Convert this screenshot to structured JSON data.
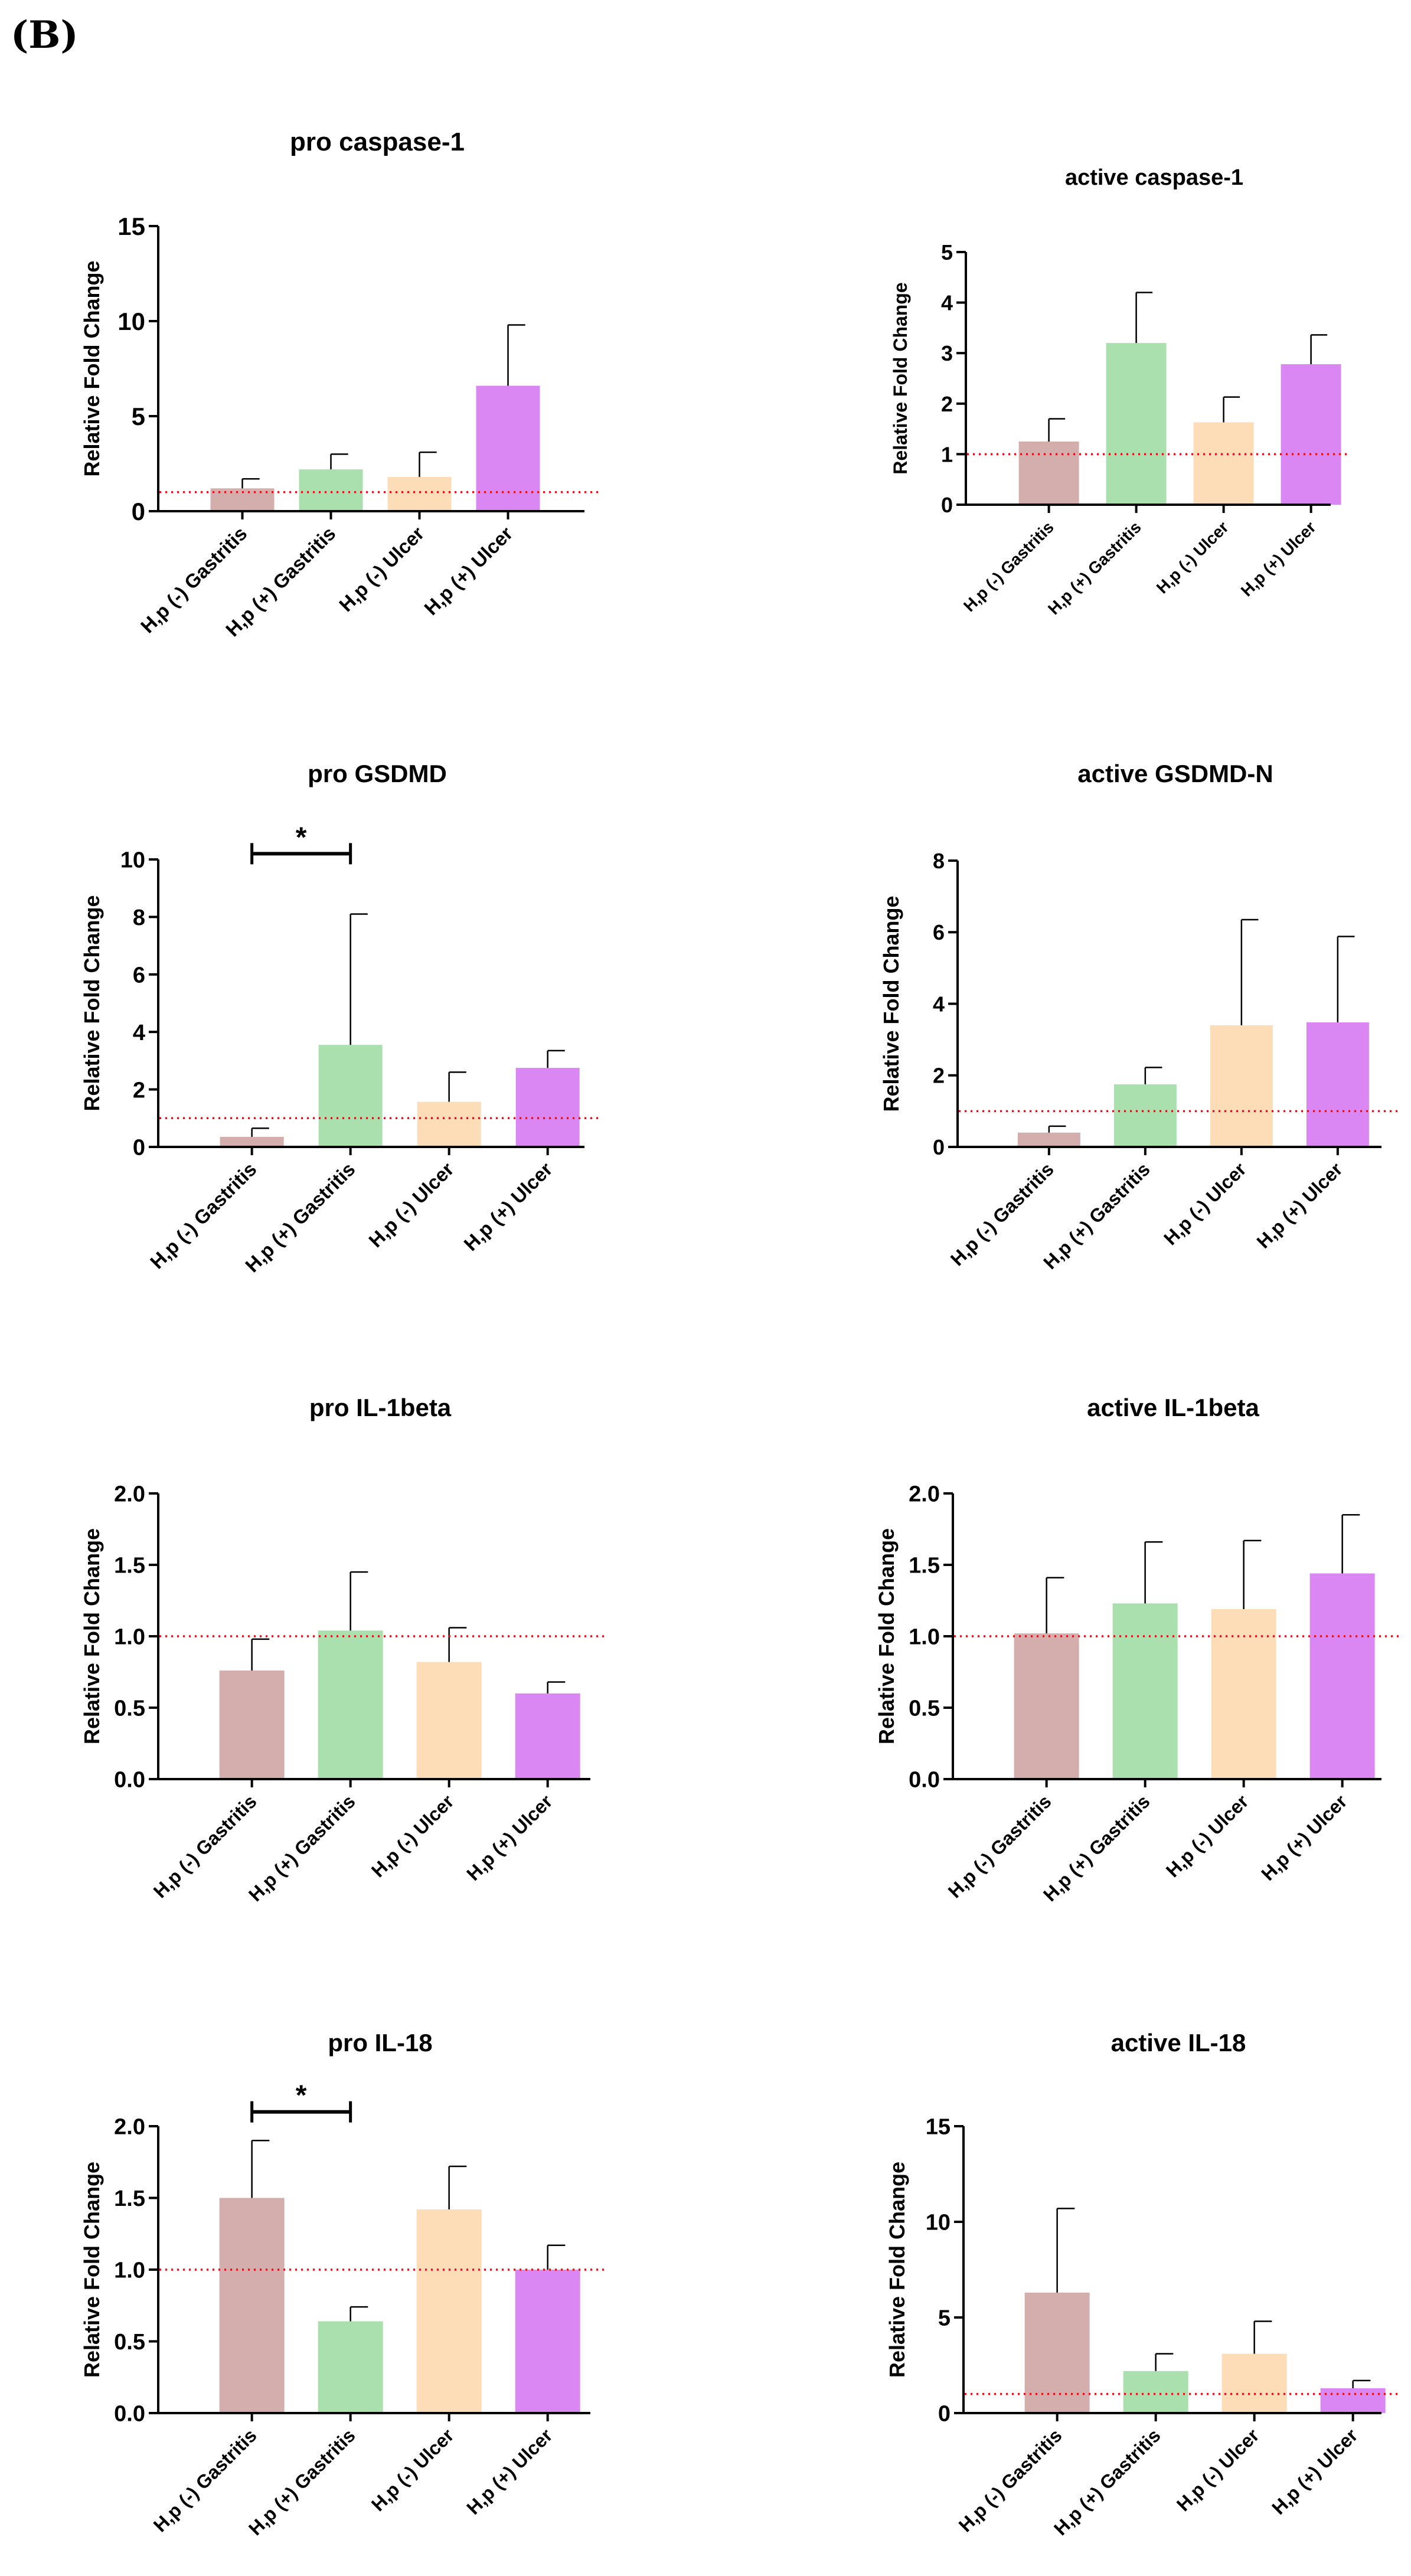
{
  "figure": {
    "panel_label": "(B)",
    "ylabel": "Relative Fold Change",
    "colors": {
      "gastritis_neg": "#d4aeac",
      "gastritis_pos": "#aae0ae",
      "ulcer_neg": "#fddcb8",
      "ulcer_pos": "#db87f3",
      "reference_line": "#e2101a"
    }
  },
  "chart_data": [
    {
      "type": "bar",
      "title": "pro caspase-1",
      "ylabel": "Relative Fold Change",
      "categories": [
        "H,p (-) Gastritis",
        "H,p (+) Gastritis",
        "H,p (-) Ulcer",
        "H,p (+) Ulcer"
      ],
      "values": [
        1.2,
        2.2,
        1.8,
        6.6
      ],
      "errors": [
        0.5,
        0.8,
        1.3,
        3.2
      ],
      "ylim": [
        0,
        15
      ],
      "yticks": [
        "0",
        "5",
        "10",
        "15"
      ],
      "reference_line": 1.0,
      "significance": []
    },
    {
      "type": "bar",
      "title": "active caspase-1",
      "ylabel": "Relative Fold Change",
      "categories": [
        "H,p (-) Gastritis",
        "H,p (+) Gastritis",
        "H,p (-) Ulcer",
        "H,p (+) Ulcer"
      ],
      "values": [
        1.25,
        3.2,
        1.63,
        2.78
      ],
      "errors": [
        0.45,
        1.0,
        0.5,
        0.58
      ],
      "ylim": [
        0,
        5
      ],
      "yticks": [
        "0",
        "1",
        "2",
        "3",
        "4",
        "5"
      ],
      "reference_line": 1.0,
      "significance": []
    },
    {
      "type": "bar",
      "title": "pro GSDMD",
      "ylabel": "Relative Fold Change",
      "categories": [
        "H,p (-) Gastritis",
        "H,p (+) Gastritis",
        "H,p (-) Ulcer",
        "H,p (+) Ulcer"
      ],
      "values": [
        0.35,
        3.55,
        1.57,
        2.75
      ],
      "errors": [
        0.3,
        4.55,
        1.03,
        0.6
      ],
      "ylim": [
        0,
        10
      ],
      "yticks": [
        "0",
        "2",
        "4",
        "6",
        "8",
        "10"
      ],
      "reference_line": 1.0,
      "significance": [
        {
          "from": 0,
          "to": 1,
          "label": "*",
          "level": 10.2
        }
      ]
    },
    {
      "type": "bar",
      "title": "active GSDMD-N",
      "ylabel": "Relative Fold Change",
      "categories": [
        "H,p (-) Gastritis",
        "H,p (+) Gastritis",
        "H,p (-) Ulcer",
        "H,p (+) Ulcer"
      ],
      "values": [
        0.4,
        1.75,
        3.4,
        3.48
      ],
      "errors": [
        0.18,
        0.47,
        2.95,
        2.4
      ],
      "ylim": [
        0,
        8
      ],
      "yticks": [
        "0",
        "2",
        "4",
        "6",
        "8"
      ],
      "reference_line": 1.0,
      "significance": []
    },
    {
      "type": "bar",
      "title": "pro IL-1beta",
      "ylabel": "Relative Fold Change",
      "categories": [
        "H,p (-) Gastritis",
        "H,p (+) Gastritis",
        "H,p (-) Ulcer",
        "H,p (+) Ulcer"
      ],
      "values": [
        0.76,
        1.04,
        0.82,
        0.6
      ],
      "errors": [
        0.22,
        0.41,
        0.24,
        0.08
      ],
      "ylim": [
        0,
        2.0
      ],
      "yticks": [
        "0.0",
        "0.5",
        "1.0",
        "1.5",
        "2.0"
      ],
      "reference_line": 1.0,
      "significance": []
    },
    {
      "type": "bar",
      "title": "active IL-1beta",
      "ylabel": "Relative Fold Change",
      "categories": [
        "H,p (-) Gastritis",
        "H,p (+) Gastritis",
        "H,p (-) Ulcer",
        "H,p (+) Ulcer"
      ],
      "values": [
        1.02,
        1.23,
        1.19,
        1.44
      ],
      "errors": [
        0.39,
        0.43,
        0.48,
        0.41
      ],
      "ylim": [
        0,
        2.0
      ],
      "yticks": [
        "0.0",
        "0.5",
        "1.0",
        "1.5",
        "2.0"
      ],
      "reference_line": 1.0,
      "significance": []
    },
    {
      "type": "bar",
      "title": "pro IL-18",
      "ylabel": "Relative Fold Change",
      "categories": [
        "H,p (-) Gastritis",
        "H,p (+) Gastritis",
        "H,p (-) Ulcer",
        "H,p (+) Ulcer"
      ],
      "values": [
        1.5,
        0.64,
        1.42,
        1.0
      ],
      "errors": [
        0.4,
        0.1,
        0.3,
        0.17
      ],
      "ylim": [
        0,
        2.0
      ],
      "yticks": [
        "0.0",
        "0.5",
        "1.0",
        "1.5",
        "2.0"
      ],
      "reference_line": 1.0,
      "significance": [
        {
          "from": 0,
          "to": 1,
          "label": "*",
          "level": 2.1
        }
      ]
    },
    {
      "type": "bar",
      "title": "active IL-18",
      "ylabel": "Relative Fold Change",
      "categories": [
        "H,p (-) Gastritis",
        "H,p (+) Gastritis",
        "H,p (-) Ulcer",
        "H,p (+) Ulcer"
      ],
      "values": [
        6.3,
        2.2,
        3.1,
        1.3
      ],
      "errors": [
        4.4,
        0.9,
        1.7,
        0.4
      ],
      "ylim": [
        0,
        15
      ],
      "yticks": [
        "0",
        "5",
        "10",
        "15"
      ],
      "reference_line": 1.0,
      "significance": []
    }
  ]
}
